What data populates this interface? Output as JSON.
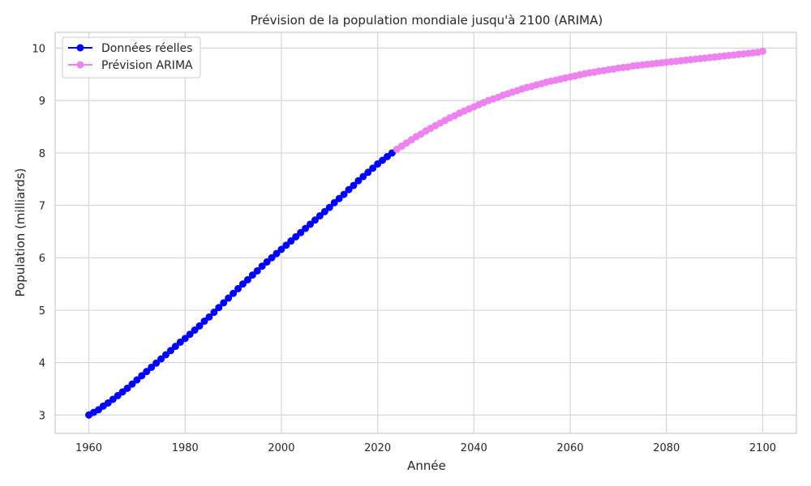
{
  "chart_data": {
    "type": "line",
    "title": "Prévision de la population mondiale jusqu'à 2100 (ARIMA)",
    "xlabel": "Année",
    "ylabel": "Population (milliards)",
    "xlim": [
      1953,
      2107
    ],
    "ylim": [
      2.65,
      10.3
    ],
    "xticks": [
      1960,
      1980,
      2000,
      2020,
      2040,
      2060,
      2080,
      2100
    ],
    "yticks": [
      3,
      4,
      5,
      6,
      7,
      8,
      9,
      10
    ],
    "grid": true,
    "legend_position": "top-left",
    "series": [
      {
        "name": "Données réelles",
        "color": "#0000ff",
        "marker": "circle",
        "x": [
          1960,
          1961,
          1962,
          1963,
          1964,
          1965,
          1966,
          1967,
          1968,
          1969,
          1970,
          1971,
          1972,
          1973,
          1974,
          1975,
          1976,
          1977,
          1978,
          1979,
          1980,
          1981,
          1982,
          1983,
          1984,
          1985,
          1986,
          1987,
          1988,
          1989,
          1990,
          1991,
          1992,
          1993,
          1994,
          1995,
          1996,
          1997,
          1998,
          1999,
          2000,
          2001,
          2002,
          2003,
          2004,
          2005,
          2006,
          2007,
          2008,
          2009,
          2010,
          2011,
          2012,
          2013,
          2014,
          2015,
          2016,
          2017,
          2018,
          2019,
          2020,
          2021,
          2022,
          2023
        ],
        "y": [
          3.0,
          3.05,
          3.1,
          3.17,
          3.23,
          3.3,
          3.37,
          3.44,
          3.51,
          3.59,
          3.67,
          3.75,
          3.83,
          3.91,
          3.99,
          4.07,
          4.15,
          4.23,
          4.31,
          4.39,
          4.46,
          4.54,
          4.62,
          4.7,
          4.79,
          4.87,
          4.96,
          5.05,
          5.14,
          5.23,
          5.32,
          5.41,
          5.5,
          5.58,
          5.67,
          5.75,
          5.84,
          5.92,
          6.0,
          6.08,
          6.16,
          6.24,
          6.32,
          6.4,
          6.48,
          6.56,
          6.64,
          6.72,
          6.8,
          6.88,
          6.96,
          7.05,
          7.13,
          7.21,
          7.3,
          7.38,
          7.47,
          7.55,
          7.63,
          7.71,
          7.79,
          7.86,
          7.93,
          8.0
        ]
      },
      {
        "name": "Prévision ARIMA",
        "color": "#ee82ee",
        "marker": "circle",
        "x": [
          2024,
          2025,
          2026,
          2027,
          2028,
          2029,
          2030,
          2031,
          2032,
          2033,
          2034,
          2035,
          2036,
          2037,
          2038,
          2039,
          2040,
          2041,
          2042,
          2043,
          2044,
          2045,
          2046,
          2047,
          2048,
          2049,
          2050,
          2051,
          2052,
          2053,
          2054,
          2055,
          2056,
          2057,
          2058,
          2059,
          2060,
          2061,
          2062,
          2063,
          2064,
          2065,
          2066,
          2067,
          2068,
          2069,
          2070,
          2071,
          2072,
          2073,
          2074,
          2075,
          2076,
          2077,
          2078,
          2079,
          2080,
          2081,
          2082,
          2083,
          2084,
          2085,
          2086,
          2087,
          2088,
          2089,
          2090,
          2091,
          2092,
          2093,
          2094,
          2095,
          2096,
          2097,
          2098,
          2099,
          2100
        ],
        "y": [
          8.07,
          8.13,
          8.19,
          8.25,
          8.31,
          8.36,
          8.42,
          8.47,
          8.52,
          8.57,
          8.62,
          8.67,
          8.71,
          8.76,
          8.8,
          8.84,
          8.88,
          8.92,
          8.96,
          9.0,
          9.03,
          9.06,
          9.1,
          9.13,
          9.16,
          9.19,
          9.22,
          9.25,
          9.27,
          9.3,
          9.32,
          9.35,
          9.37,
          9.39,
          9.41,
          9.43,
          9.45,
          9.47,
          9.49,
          9.51,
          9.53,
          9.54,
          9.56,
          9.57,
          9.59,
          9.6,
          9.62,
          9.63,
          9.64,
          9.66,
          9.67,
          9.68,
          9.69,
          9.7,
          9.71,
          9.72,
          9.73,
          9.74,
          9.75,
          9.76,
          9.77,
          9.78,
          9.79,
          9.8,
          9.81,
          9.82,
          9.83,
          9.84,
          9.85,
          9.86,
          9.87,
          9.88,
          9.89,
          9.9,
          9.91,
          9.92,
          9.94
        ]
      }
    ]
  }
}
